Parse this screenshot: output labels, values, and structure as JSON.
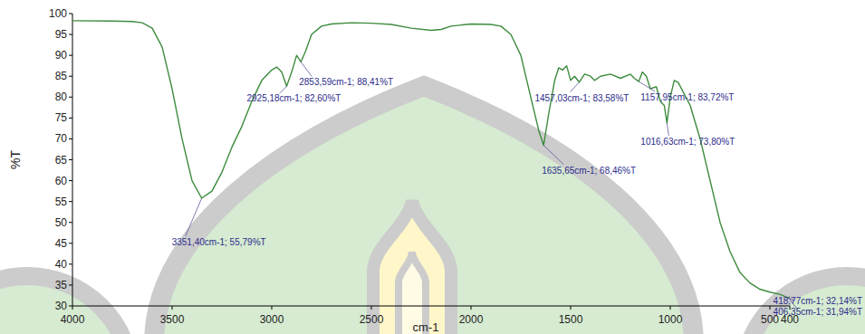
{
  "chart_data": {
    "type": "line",
    "x_label": "cm-1",
    "y_label": "%T",
    "color": "#3d8b3d",
    "xlim": [
      4000,
      400
    ],
    "ylim": [
      30,
      100
    ],
    "xticks": [
      4000,
      3500,
      3000,
      2500,
      2000,
      1500,
      1000,
      500,
      400
    ],
    "yticks": [
      30,
      35,
      40,
      45,
      50,
      55,
      60,
      65,
      70,
      75,
      80,
      85,
      90,
      95,
      100
    ],
    "x": [
      4000,
      3800,
      3700,
      3650,
      3600,
      3550,
      3500,
      3450,
      3400,
      3351.4,
      3300,
      3250,
      3200,
      3150,
      3100,
      3050,
      3000,
      2975,
      2950,
      2925.18,
      2900,
      2875,
      2853.59,
      2830,
      2800,
      2750,
      2700,
      2600,
      2500,
      2400,
      2300,
      2200,
      2150,
      2100,
      2000,
      1900,
      1850,
      1800,
      1750,
      1700,
      1660,
      1635.65,
      1610,
      1580,
      1560,
      1540,
      1520,
      1500,
      1480,
      1457.03,
      1430,
      1400,
      1380,
      1350,
      1300,
      1250,
      1200,
      1180,
      1157.95,
      1140,
      1120,
      1100,
      1070,
      1050,
      1030,
      1016.63,
      1000,
      980,
      960,
      900,
      850,
      800,
      750,
      700,
      650,
      600,
      550,
      500,
      450,
      418.77,
      406.35,
      400
    ],
    "values": [
      98.3,
      98.2,
      98.1,
      97.8,
      96.5,
      92,
      82,
      70,
      60,
      55.79,
      57.5,
      62,
      68,
      73,
      79,
      84,
      86.5,
      87.2,
      86,
      82.6,
      86,
      90,
      88.41,
      91,
      95,
      97,
      97.5,
      97.8,
      97.7,
      97.4,
      96.5,
      96,
      96.2,
      97,
      97.5,
      97.4,
      97,
      95,
      90,
      80,
      72,
      68.46,
      76,
      84,
      87,
      86.5,
      87.5,
      84,
      85,
      83.58,
      85.5,
      85,
      84,
      85,
      85.5,
      84.5,
      85.5,
      84.5,
      83.72,
      86,
      85,
      82,
      82.5,
      79,
      78,
      73.8,
      80,
      84,
      83.5,
      78,
      70,
      60,
      50,
      43,
      38,
      35.5,
      34,
      33.3,
      32.8,
      32.14,
      31.94,
      32.2
    ],
    "annotations": [
      {
        "x": 3351.4,
        "y": 55.79,
        "label": "3351,40cm-1; 55,79%T"
      },
      {
        "x": 2925.18,
        "y": 82.6,
        "label": "2925,18cm-1; 82,60%T"
      },
      {
        "x": 2853.59,
        "y": 88.41,
        "label": "2853,59cm-1; 88,41%T"
      },
      {
        "x": 1635.65,
        "y": 68.46,
        "label": "1635,65cm-1; 68,46%T"
      },
      {
        "x": 1457.03,
        "y": 83.58,
        "label": "1457,03cm-1; 83,58%T"
      },
      {
        "x": 1157.95,
        "y": 83.72,
        "label": "1157,95cm-1; 83,72%T"
      },
      {
        "x": 1016.63,
        "y": 73.8,
        "label": "1016,63cm-1; 73,80%T"
      },
      {
        "x": 418.77,
        "y": 32.14,
        "label": "418,77cm-1; 32,14%T"
      },
      {
        "x": 406.35,
        "y": 31.94,
        "label": "406,35cm-1; 31,94%T"
      }
    ]
  }
}
